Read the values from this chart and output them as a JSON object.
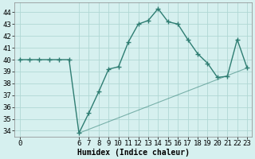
{
  "x": [
    0,
    1,
    2,
    3,
    4,
    5,
    6,
    7,
    8,
    9,
    10,
    11,
    12,
    13,
    14,
    15,
    16,
    17,
    18,
    19,
    20,
    21,
    22,
    23
  ],
  "y": [
    40,
    40,
    40,
    40,
    40,
    40,
    33.8,
    35.5,
    37.3,
    39.2,
    39.4,
    41.5,
    43.0,
    43.3,
    44.3,
    43.2,
    43.0,
    41.7,
    40.5,
    39.7,
    38.5,
    38.6,
    41.7,
    39.3
  ],
  "line_color": "#2e7d72",
  "marker": "+",
  "bg_color": "#d6f0ef",
  "grid_color": "#b0d8d4",
  "ylabel_vals": [
    34,
    35,
    36,
    37,
    38,
    39,
    40,
    41,
    42,
    43,
    44
  ],
  "ylim": [
    33.5,
    44.8
  ],
  "xlabel": "Humidex (Indice chaleur)",
  "xlabel_fontsize": 7,
  "tick_fontsize": 6.5,
  "line_width": 1.0,
  "marker_size": 4,
  "second_line_x": [
    6,
    23
  ],
  "second_line_y": [
    33.8,
    39.3
  ],
  "xlim": [
    -0.5,
    23.5
  ]
}
